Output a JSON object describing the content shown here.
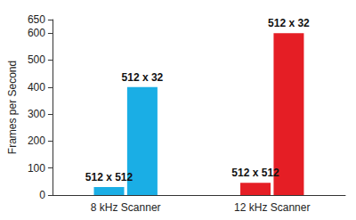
{
  "chart_data": {
    "type": "bar",
    "y_label": "Frames per Second",
    "categories": [
      "8 kHz Scanner",
      "12 kHz Scanner"
    ],
    "series": [
      {
        "name": "512 x 512",
        "values": [
          30,
          45
        ],
        "colors": [
          "#1aaee5",
          "#e51e25"
        ]
      },
      {
        "name": "512 x 32",
        "values": [
          400,
          600
        ],
        "colors": [
          "#1aaee5",
          "#e51e25"
        ]
      }
    ],
    "ylim": [
      0,
      650
    ],
    "yticks": [
      0,
      100,
      200,
      300,
      400,
      500,
      600
    ],
    "grid": false
  }
}
